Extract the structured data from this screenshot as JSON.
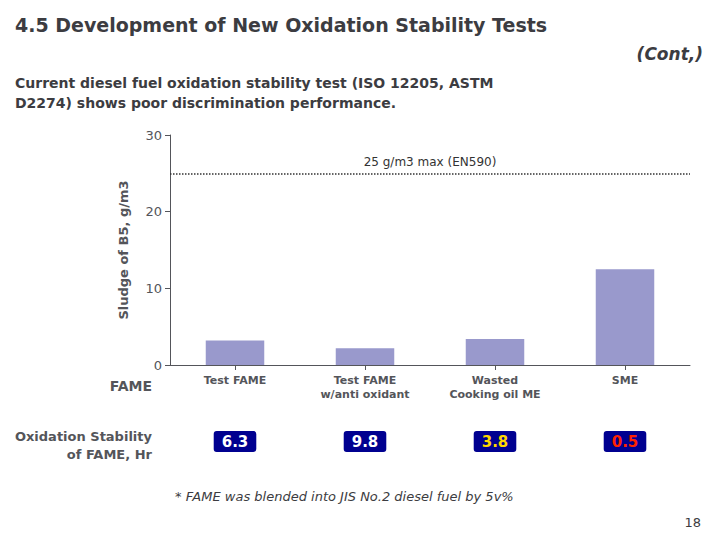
{
  "chart_data": {
    "type": "bar",
    "title": [
      "4.5 Development of New Oxidation Stability Tests",
      "(Cont,)"
    ],
    "subtitle": "Current diesel fuel oxidation stability test (ISO 12205, ASTM\nD2274) shows poor discrimination performance.",
    "categories": [
      "Test FAME",
      "Test FAME\nw/anti oxidant",
      "Wasted\nCooking oil ME",
      "SME"
    ],
    "values": [
      3.2,
      2.2,
      3.4,
      12.5
    ],
    "color": "#9999CC",
    "xlabel": "FAME",
    "ylabel": "Sludge of B5, g/m3",
    "ylim": [
      0,
      30
    ],
    "yticks": [
      0,
      10,
      20,
      30
    ],
    "grid": false,
    "reference_line": {
      "value": 25,
      "label": "25 g/m3 max (EN590)"
    },
    "oxidation_stability": {
      "label": "Oxidation Stability\nof FAME, Hr",
      "values": [
        6.3,
        9.8,
        3.8,
        0.5
      ],
      "colors": [
        "#FFFFFF",
        "#FFFFFF",
        "#FFD700",
        "#FF2200"
      ]
    },
    "annotations": [
      "* FAME was blended into JIS No.2 diesel fuel by 5v%",
      "18"
    ]
  }
}
